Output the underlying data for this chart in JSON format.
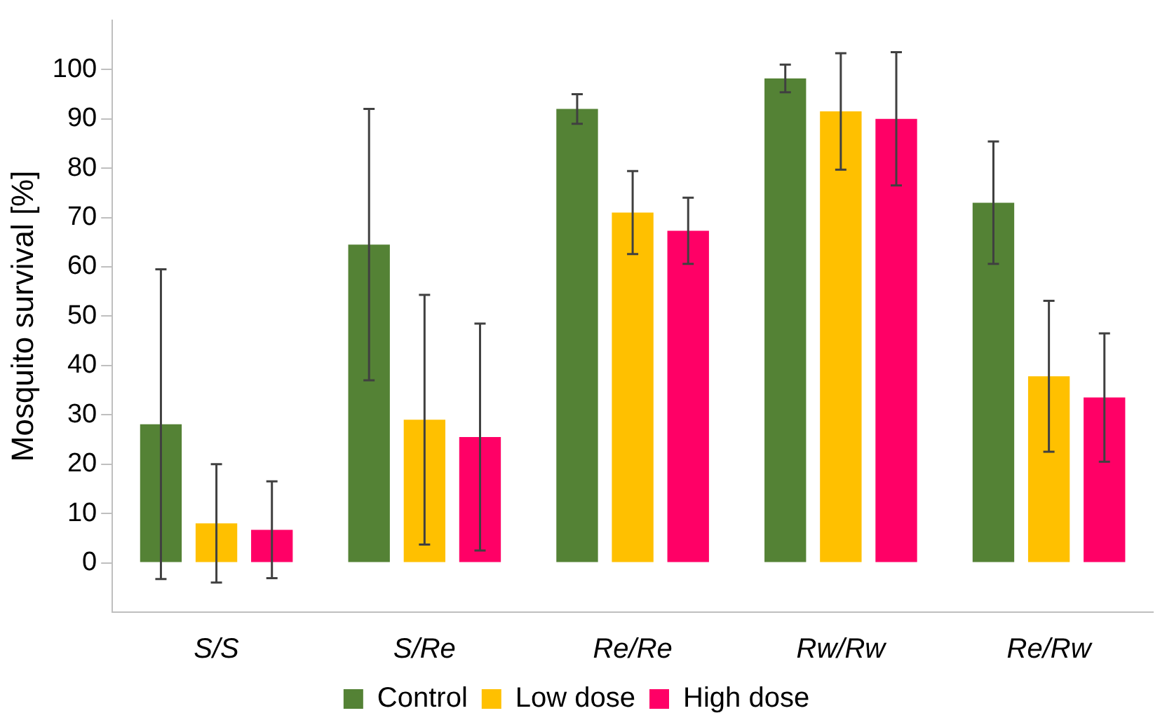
{
  "chart_data": {
    "type": "bar",
    "ylabel": "Mosquito survival [%]",
    "categories": [
      "S/S",
      "S/Re",
      "Re/Re",
      "Rw/Rw",
      "Re/Rw"
    ],
    "series": [
      {
        "name": "Control",
        "color": "#548235",
        "values": [
          28.1,
          64.5,
          92,
          98.2,
          73
        ],
        "errors": [
          31.4,
          27.5,
          3,
          2.8,
          12.4
        ]
      },
      {
        "name": "Low dose",
        "color": "#ffc000",
        "values": [
          8,
          29,
          71,
          91.5,
          37.8
        ],
        "errors": [
          12,
          25.3,
          8.4,
          11.8,
          15.3
        ]
      },
      {
        "name": "High dose",
        "color": "#ff0066",
        "values": [
          6.7,
          25.5,
          67.3,
          90,
          33.5
        ],
        "errors": [
          9.8,
          23,
          6.7,
          13.5,
          13
        ]
      }
    ],
    "ylim": [
      -10,
      110
    ],
    "yticks": [
      0,
      10,
      20,
      30,
      40,
      50,
      60,
      70,
      80,
      90,
      100
    ],
    "grid": false,
    "legend": "bottom"
  }
}
